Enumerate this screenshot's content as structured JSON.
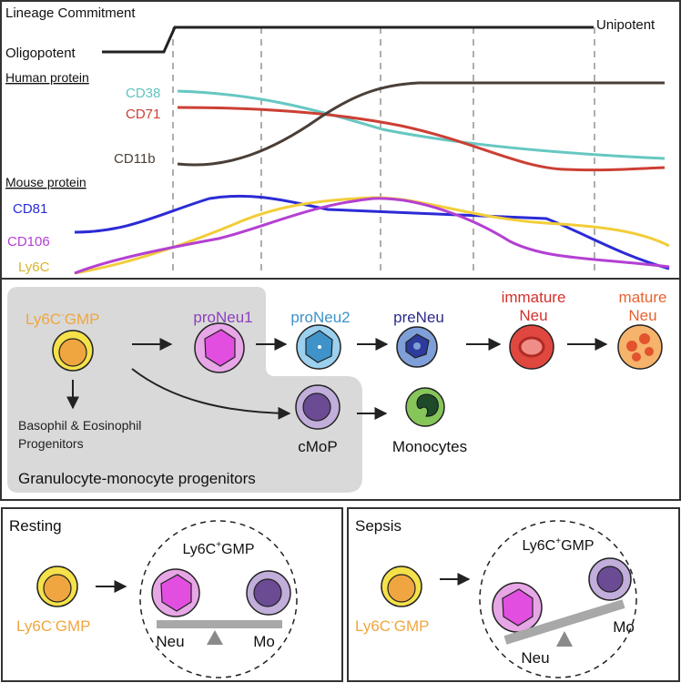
{
  "panel_a": {
    "lineage": {
      "title": "Lineage Commitment",
      "left": "Oligopotent",
      "right": "Unipotent"
    },
    "human": {
      "heading": "Human protein",
      "markers": [
        {
          "label": "CD38",
          "color": "#5fc4c0"
        },
        {
          "label": "CD71",
          "color": "#cc3f34"
        },
        {
          "label": "CD11b",
          "color": "#4a3f38"
        }
      ]
    },
    "mouse": {
      "heading": "Mouse protein",
      "markers": [
        {
          "label": "CD81",
          "color": "#2b2bd6"
        },
        {
          "label": "CD106",
          "color": "#b440d2"
        },
        {
          "label": "Ly6C",
          "color": "#f2cd3a"
        }
      ]
    }
  },
  "panel_b": {
    "gmp_label_main": "Ly6C",
    "gmp_label_sup": "-",
    "gmp_label_tail": "GMP",
    "stages": [
      {
        "label": "proNeu1",
        "color": "#8e3fbf"
      },
      {
        "label": "proNeu2",
        "color": "#3f93c9"
      },
      {
        "label": "preNeu",
        "color": "#2d2a8c"
      }
    ],
    "immature": {
      "line1": "immature",
      "line2": "Neu",
      "color": "#d2322d"
    },
    "mature": {
      "line1": "mature",
      "line2": "Neu",
      "color": "#e9622e"
    },
    "basophil": {
      "line1": "Basophil & Eosinophil",
      "line2": "Progenitors"
    },
    "cmop": "cMoP",
    "monocytes": "Monocytes",
    "region_label": "Granulocyte-monocyte progenitors"
  },
  "panel_c": {
    "resting": {
      "title": "Resting",
      "gmp_main": "Ly6C",
      "gmp_sup": "-",
      "gmp_tail": "GMP",
      "circle_main": "Ly6C",
      "circle_sup": "+",
      "circle_tail": "GMP",
      "neu": "Neu",
      "mo": "Mo"
    },
    "sepsis": {
      "title": "Sepsis",
      "gmp_main": "Ly6C",
      "gmp_sup": "-",
      "gmp_tail": "GMP",
      "circle_main": "Ly6C",
      "circle_sup": "+",
      "circle_tail": "GMP",
      "neu": "Neu",
      "mo": "Mo"
    }
  },
  "colors": {
    "gmp_orange": "#f0a640",
    "gmp_yellow": "#f5e14a",
    "neu_magenta": "#e24fe0",
    "mo_purple": "#6a4b94",
    "gray_box": "#d9d9d9"
  }
}
